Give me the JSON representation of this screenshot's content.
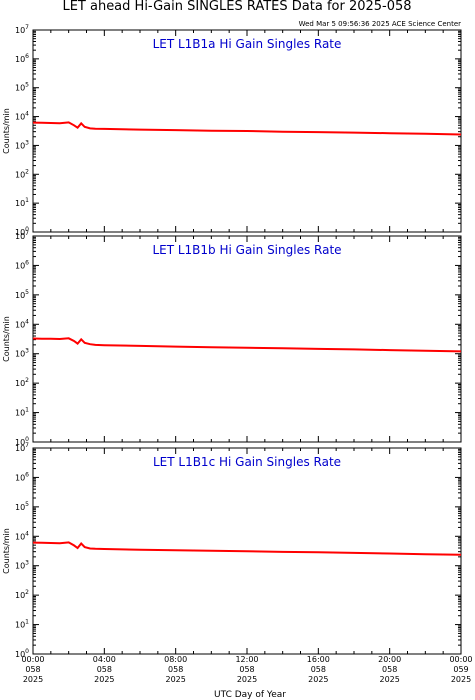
{
  "page": {
    "title": "LET ahead Hi-Gain SINGLES RATES Data for 2025-058",
    "timestamp": "Wed Mar  5 09:56:36 2025 ACE Science Center"
  },
  "colors": {
    "series": "#ff0000",
    "panel_title": "#0000cc",
    "axes": "#000000"
  },
  "chart_data": [
    {
      "type": "line",
      "title": "LET L1B1a Hi Gain Singles Rate",
      "ylabel": "Counts/min",
      "yscale": "log",
      "ylim": [
        1,
        10000000
      ],
      "xlim": [
        0,
        24
      ],
      "xticks_hours": [
        0,
        4,
        8,
        12,
        16,
        20,
        24
      ],
      "ytick_labels": [
        {
          "base": "10",
          "exp": "0"
        },
        {
          "base": "10",
          "exp": "1"
        },
        {
          "base": "10",
          "exp": "2"
        },
        {
          "base": "10",
          "exp": "3"
        },
        {
          "base": "10",
          "exp": "4"
        },
        {
          "base": "10",
          "exp": "5"
        },
        {
          "base": "10",
          "exp": "6"
        },
        {
          "base": "10",
          "exp": "7"
        }
      ],
      "series": [
        {
          "x": [
            0,
            0.5,
            1.0,
            1.5,
            2.0,
            2.3,
            2.5,
            2.7,
            2.9,
            3.2,
            3.5,
            4,
            6,
            8,
            10,
            12,
            14,
            16,
            18,
            20,
            22,
            24
          ],
          "y": [
            6200,
            6100,
            6000,
            5900,
            6300,
            5000,
            4100,
            5800,
            4400,
            3900,
            3800,
            3750,
            3550,
            3400,
            3250,
            3150,
            3000,
            2900,
            2780,
            2650,
            2520,
            2400
          ]
        }
      ]
    },
    {
      "type": "line",
      "title": "LET L1B1b Hi Gain Singles Rate",
      "ylabel": "Counts/min",
      "yscale": "log",
      "ylim": [
        1,
        10000000
      ],
      "xlim": [
        0,
        24
      ],
      "xticks_hours": [
        0,
        4,
        8,
        12,
        16,
        20,
        24
      ],
      "ytick_labels": [
        {
          "base": "10",
          "exp": "0"
        },
        {
          "base": "10",
          "exp": "1"
        },
        {
          "base": "10",
          "exp": "2"
        },
        {
          "base": "10",
          "exp": "3"
        },
        {
          "base": "10",
          "exp": "4"
        },
        {
          "base": "10",
          "exp": "5"
        },
        {
          "base": "10",
          "exp": "6"
        },
        {
          "base": "10",
          "exp": "7"
        }
      ],
      "series": [
        {
          "x": [
            0,
            0.5,
            1.0,
            1.5,
            2.0,
            2.3,
            2.5,
            2.7,
            2.9,
            3.2,
            3.5,
            4,
            6,
            8,
            10,
            12,
            14,
            16,
            18,
            20,
            22,
            24
          ],
          "y": [
            3300,
            3250,
            3200,
            3150,
            3350,
            2700,
            2200,
            3100,
            2350,
            2100,
            2000,
            1950,
            1850,
            1750,
            1650,
            1600,
            1530,
            1460,
            1400,
            1330,
            1260,
            1200
          ]
        }
      ]
    },
    {
      "type": "line",
      "title": "LET L1B1c Hi Gain Singles Rate",
      "ylabel": "Counts/min",
      "yscale": "log",
      "ylim": [
        1,
        10000000
      ],
      "xlim": [
        0,
        24
      ],
      "xticks_hours": [
        0,
        4,
        8,
        12,
        16,
        20,
        24
      ],
      "ytick_labels": [
        {
          "base": "10",
          "exp": "0"
        },
        {
          "base": "10",
          "exp": "1"
        },
        {
          "base": "10",
          "exp": "2"
        },
        {
          "base": "10",
          "exp": "3"
        },
        {
          "base": "10",
          "exp": "4"
        },
        {
          "base": "10",
          "exp": "5"
        },
        {
          "base": "10",
          "exp": "6"
        },
        {
          "base": "10",
          "exp": "7"
        }
      ],
      "series": [
        {
          "x": [
            0,
            0.5,
            1.0,
            1.5,
            2.0,
            2.3,
            2.5,
            2.7,
            2.9,
            3.2,
            3.5,
            4,
            6,
            8,
            10,
            12,
            14,
            16,
            18,
            20,
            22,
            24
          ],
          "y": [
            6100,
            6000,
            5900,
            5800,
            6200,
            4900,
            4000,
            5700,
            4300,
            3850,
            3750,
            3700,
            3500,
            3350,
            3200,
            3100,
            2950,
            2850,
            2730,
            2600,
            2470,
            2350
          ]
        }
      ]
    }
  ],
  "x_axis": {
    "label": "UTC Day of Year",
    "ticks": [
      {
        "time": "00:00",
        "doy": "058",
        "year": "2025"
      },
      {
        "time": "04:00",
        "doy": "058",
        "year": "2025"
      },
      {
        "time": "08:00",
        "doy": "058",
        "year": "2025"
      },
      {
        "time": "12:00",
        "doy": "058",
        "year": "2025"
      },
      {
        "time": "16:00",
        "doy": "058",
        "year": "2025"
      },
      {
        "time": "20:00",
        "doy": "058",
        "year": "2025"
      },
      {
        "time": "00:00",
        "doy": "059",
        "year": "2025"
      }
    ]
  }
}
